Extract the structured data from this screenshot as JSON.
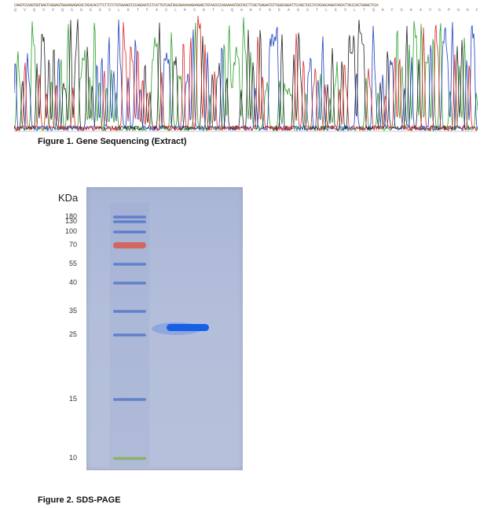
{
  "sequencing": {
    "dna_strip": "CAAGTCCAAGTGGTGAGTCAGGAGTGGAAAGAGACACTACACACCTTCTTCTCTGTGAAAGTCCCAGGAATCCTCATTGTCAGTGGCAGAAAAAGAAGAGCTGTAACCCCAGAAAAGTGGTACCTTCACTGAGAATGTTGGGCGGGATTCCAGCTGCCTATACGACAAGATAACATTACCCACTGAGACTCCA",
    "aa_strip": "Q V Q V V Q S G E E V L K T F A S L K S G T L Q A K F G E A G S T L E V L T Q K F E K A V S P G K N V Y F S S S A V K V I G F A T E D E I R T I S Q L G",
    "colors": {
      "A": "#2ca02c",
      "C": "#1f3fbf",
      "G": "#222222",
      "T": "#d62728"
    }
  },
  "figure1_caption": "Figure 1. Gene Sequencing (Extract)",
  "figure2_caption": "Figure 2. SDS-PAGE",
  "gel": {
    "unit_label": "KDa",
    "markers": [
      {
        "kda": 180,
        "label": "180",
        "color": "#4a6fc8"
      },
      {
        "kda": 130,
        "label": "130",
        "color": "#4a6fc8"
      },
      {
        "kda": 100,
        "label": "100",
        "color": "#4a6fc8"
      },
      {
        "kda": 70,
        "label": "70",
        "color": "#d85a4a"
      },
      {
        "kda": 55,
        "label": "55",
        "color": "#4a6fc8"
      },
      {
        "kda": 40,
        "label": "40",
        "color": "#4a6fc8"
      },
      {
        "kda": 35,
        "label": "35",
        "color": "#4a6fc8"
      },
      {
        "kda": 25,
        "label": "25",
        "color": "#4a6fc8"
      },
      {
        "kda": 15,
        "label": "15",
        "color": "#4a6fc8"
      },
      {
        "kda": 10,
        "label": "10",
        "color": "#7fb04a"
      }
    ],
    "sample_band": {
      "kda": 27,
      "color": "#1560e6"
    }
  }
}
